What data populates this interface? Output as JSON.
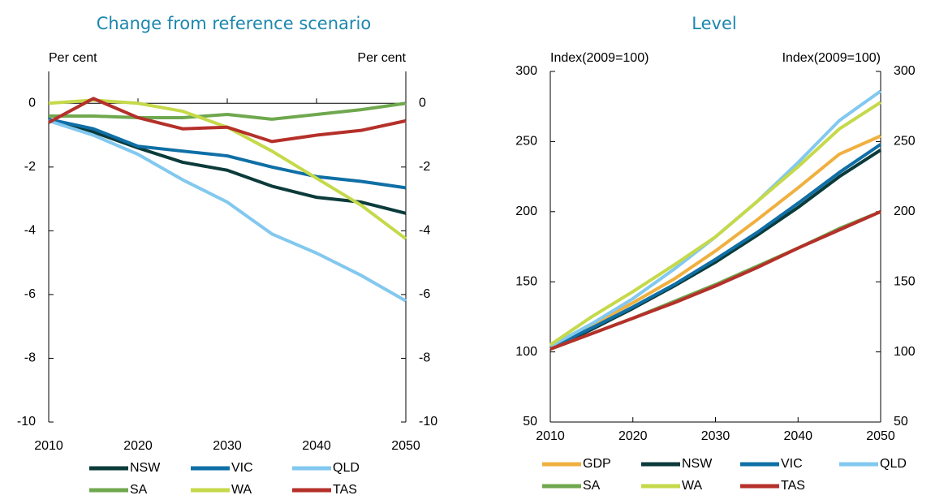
{
  "chart_data": [
    {
      "type": "line",
      "title": "Change from reference scenario",
      "y_label": "Per cent",
      "y2_label": "Per cent",
      "x": [
        2010,
        2015,
        2020,
        2025,
        2030,
        2035,
        2040,
        2045,
        2050
      ],
      "xlim": [
        2010,
        2050
      ],
      "xticks": [
        2010,
        2020,
        2030,
        2040,
        2050
      ],
      "ylim": [
        -10,
        1
      ],
      "yticks": [
        -10,
        -8,
        -6,
        -4,
        -2,
        0
      ],
      "y2lim": [
        -10,
        1
      ],
      "y2ticks": [
        -10,
        -8,
        -6,
        -4,
        -2,
        0
      ],
      "series": [
        {
          "name": "NSW",
          "color": "#0b3b3a",
          "values": [
            -0.5,
            -0.9,
            -1.4,
            -1.85,
            -2.1,
            -2.6,
            -2.95,
            -3.1,
            -3.45
          ]
        },
        {
          "name": "VIC",
          "color": "#0f6fa6",
          "values": [
            -0.5,
            -0.8,
            -1.35,
            -1.5,
            -1.65,
            -2.0,
            -2.3,
            -2.45,
            -2.65
          ]
        },
        {
          "name": "QLD",
          "color": "#82c8ef",
          "values": [
            -0.55,
            -1.0,
            -1.6,
            -2.4,
            -3.1,
            -4.1,
            -4.7,
            -5.4,
            -6.2
          ]
        },
        {
          "name": "SA",
          "color": "#6fa84e",
          "values": [
            -0.4,
            -0.4,
            -0.45,
            -0.45,
            -0.35,
            -0.5,
            -0.35,
            -0.2,
            0
          ]
        },
        {
          "name": "WA",
          "color": "#c5d94a",
          "values": [
            0,
            0.1,
            0,
            -0.25,
            -0.75,
            -1.5,
            -2.35,
            -3.2,
            -4.25
          ]
        },
        {
          "name": "TAS",
          "color": "#b5302a",
          "values": [
            -0.6,
            0.15,
            -0.45,
            -0.8,
            -0.75,
            -1.2,
            -1.0,
            -0.85,
            -0.55
          ]
        }
      ]
    },
    {
      "type": "line",
      "title": "Level",
      "y_label": "Index(2009=100)",
      "y2_label": "Index(2009=100)",
      "x": [
        2010,
        2015,
        2020,
        2025,
        2030,
        2035,
        2040,
        2045,
        2050
      ],
      "xlim": [
        2010,
        2050
      ],
      "xticks": [
        2010,
        2020,
        2030,
        2040,
        2050
      ],
      "ylim": [
        50,
        300
      ],
      "yticks": [
        50,
        100,
        150,
        200,
        250,
        300
      ],
      "y2lim": [
        50,
        300
      ],
      "y2ticks": [
        50,
        100,
        150,
        200,
        250,
        300
      ],
      "series": [
        {
          "name": "GDP",
          "color": "#f0b040",
          "values": [
            104,
            119,
            135,
            152,
            172,
            194,
            217,
            241,
            254
          ]
        },
        {
          "name": "NSW",
          "color": "#0b3b3a",
          "values": [
            102,
            116,
            131,
            147,
            164,
            183,
            203,
            225,
            244
          ]
        },
        {
          "name": "VIC",
          "color": "#0f6fa6",
          "values": [
            103,
            117,
            132,
            148,
            166,
            185,
            206,
            228,
            248
          ]
        },
        {
          "name": "QLD",
          "color": "#82c8ef",
          "values": [
            104,
            120,
            138,
            159,
            182,
            207,
            235,
            265,
            286
          ]
        },
        {
          "name": "SA",
          "color": "#6fa84e",
          "values": [
            102,
            113,
            124,
            136,
            148,
            161,
            174,
            188,
            200
          ]
        },
        {
          "name": "WA",
          "color": "#c5d94a",
          "values": [
            105,
            125,
            143,
            162,
            182,
            207,
            232,
            259,
            278
          ]
        },
        {
          "name": "TAS",
          "color": "#b5302a",
          "values": [
            102,
            113,
            124,
            135,
            147,
            160,
            174,
            187,
            200
          ]
        }
      ]
    }
  ]
}
